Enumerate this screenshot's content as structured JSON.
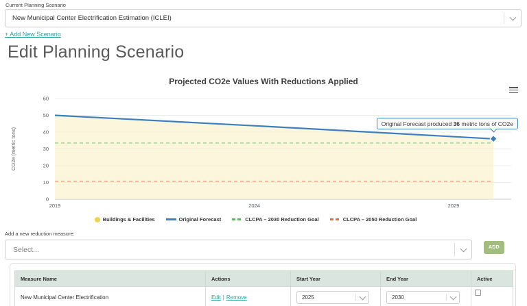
{
  "colors": {
    "teal_link": "#2f9e9c",
    "forecast_blue": "#3d7ebc",
    "area_yellow": "#f1d34f",
    "goal_2030_green": "#63b163",
    "goal_2050_red": "#e06a50",
    "add_button_green": "#a2bd7d",
    "table_header_bg": "#dbe5df"
  },
  "scenario_picker": {
    "label": "Current Planning Scenario",
    "selected_value": "New Municipal Center Electrification Estimation (ICLEI)",
    "add_link": "+ Add New Scenario"
  },
  "page_title": "Edit Planning Scenario",
  "chart_data": {
    "type": "area",
    "title": "Projected CO2e Values With Reductions Applied",
    "ylabel": "CO2e (metric tons)",
    "ylim": [
      0,
      60
    ],
    "y_ticks": [
      0,
      10,
      20,
      30,
      40,
      50,
      60
    ],
    "x_ticks": [
      2019,
      2024,
      2029
    ],
    "x_range": [
      2019,
      2030.4
    ],
    "grid": true,
    "legend_position": "bottom",
    "series": [
      {
        "name": "Buildings & Facilities",
        "type": "area",
        "color": "#f1d34f",
        "fill": "#f9f0c0",
        "x": [
          2019,
          2024,
          2030
        ],
        "values": [
          50,
          43.8,
          36
        ]
      },
      {
        "name": "Original Forecast",
        "type": "line",
        "color": "#3d7ebc",
        "x": [
          2019,
          2024,
          2030
        ],
        "values": [
          50,
          43.8,
          36
        ]
      },
      {
        "name": "CLCPA – 2030 Reduction Goal",
        "type": "dashed-line",
        "color": "#63b163",
        "value": 33.5
      },
      {
        "name": "CLCPA – 2050 Reduction Goal",
        "type": "dashed-line",
        "color": "#e06a50",
        "value": 10.7
      }
    ],
    "tooltip": {
      "text_before": "Original Forecast produced ",
      "value": "36",
      "text_after": " metric tons of CO2e"
    }
  },
  "measure_form": {
    "label": "Add a new reduction measure:",
    "placeholder": "Select...",
    "add_button": "ADD"
  },
  "measures_table": {
    "headers": [
      "Measure Name",
      "Actions",
      "Start Year",
      "End Year",
      "Active"
    ],
    "rows": [
      {
        "name": "New Municipal Center Electrification",
        "edit": "Edit",
        "separator": "|",
        "remove": "Remove",
        "start_year": "2025",
        "end_year": "2030",
        "active": false
      }
    ]
  }
}
